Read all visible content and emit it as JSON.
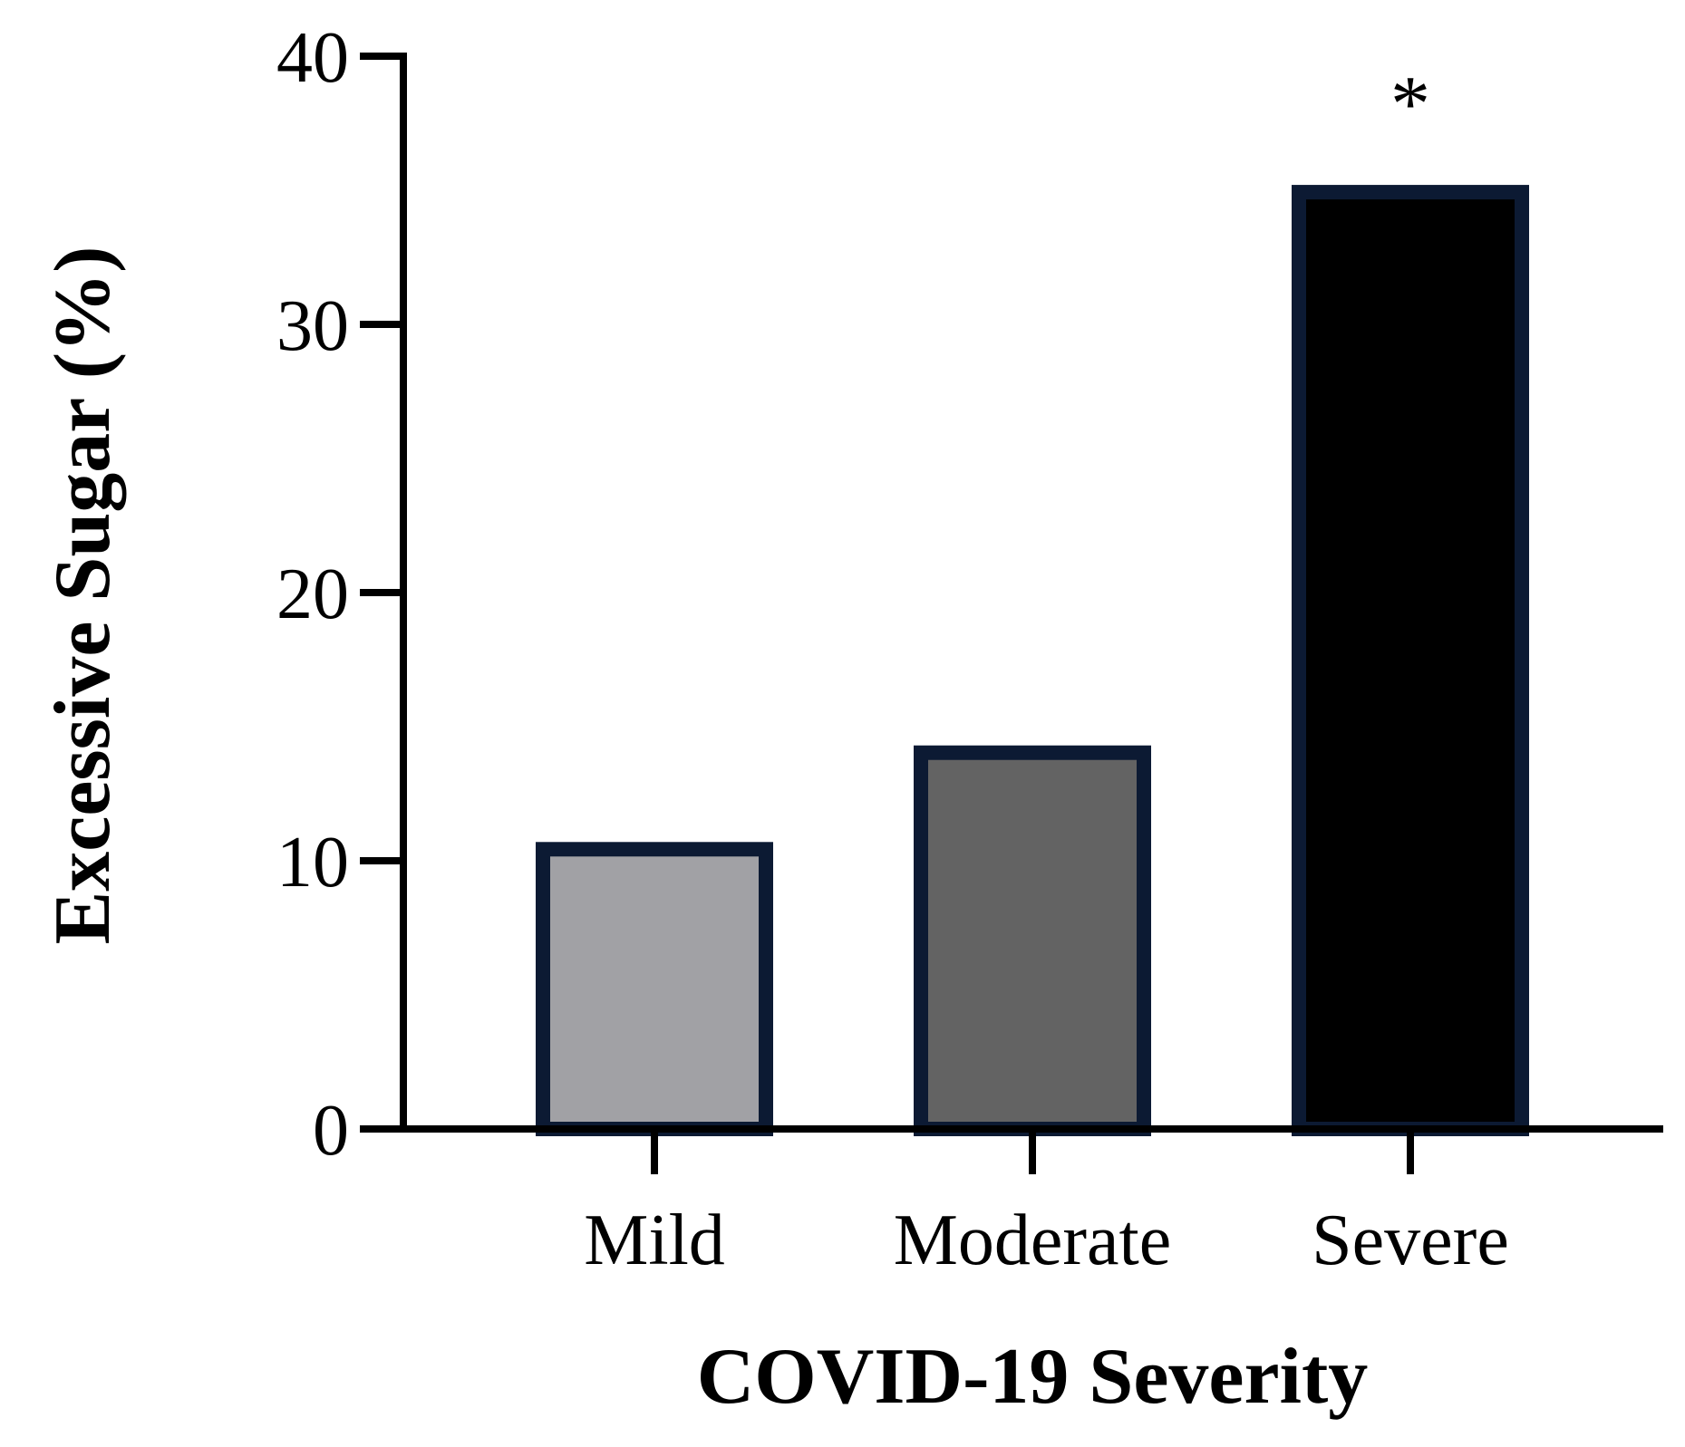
{
  "chart_data": {
    "type": "bar",
    "title": "",
    "xlabel": "COVID-19 Severity",
    "ylabel": "Excessive Sugar (%)",
    "ylim": [
      0,
      40
    ],
    "yticks": [
      0,
      10,
      20,
      30,
      40
    ],
    "yticklabels": [
      "0",
      "10",
      "20",
      "30",
      "40"
    ],
    "categories": [
      "Mild",
      "Moderate",
      "Severe"
    ],
    "values": [
      10.7,
      14.3,
      35.2
    ],
    "annotations": [
      {
        "category": "Severe",
        "text": "*"
      }
    ],
    "grid": false,
    "legend": "none",
    "colors": {
      "bar_fills": [
        "#a1a1a5",
        "#636363",
        "#000000"
      ],
      "bar_edge": "#0c1a33",
      "axis": "#000000"
    }
  }
}
